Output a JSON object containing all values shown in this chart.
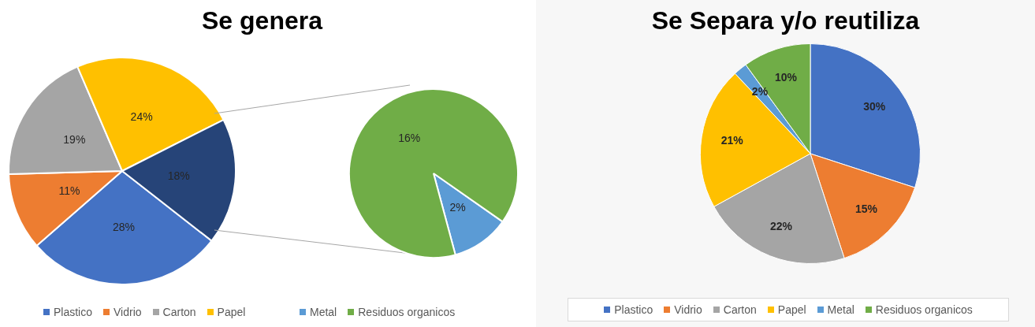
{
  "chart_data": [
    {
      "type": "pie",
      "title": "Se genera",
      "categories": [
        "Plastico",
        "Vidrio",
        "Carton",
        "Papel",
        null
      ],
      "values": [
        28,
        11,
        19,
        24,
        18
      ],
      "value_labels": [
        "28%",
        "11%",
        "19%",
        "24%",
        "18%"
      ],
      "colors": [
        "#4472c4",
        "#ed7d31",
        "#a5a5a5",
        "#ffc000",
        "#264478"
      ],
      "legend": "bottom"
    },
    {
      "type": "pie",
      "categories": [
        "Metal",
        "Residuos organicos"
      ],
      "values": [
        2,
        16
      ],
      "value_labels": [
        "2%",
        "16%"
      ],
      "colors": [
        "#5b9bd5",
        "#70ad47"
      ],
      "legend": "bottom"
    },
    {
      "type": "pie",
      "title": "Se Separa y/o reutiliza",
      "categories": [
        "Plastico",
        "Vidrio",
        "Carton",
        "Papel",
        "Metal",
        "Residuos organicos"
      ],
      "values": [
        30,
        15,
        22,
        21,
        2,
        10
      ],
      "value_labels": [
        "30%",
        "15%",
        "22%",
        "21%",
        "2%",
        "10%"
      ],
      "colors": [
        "#4472c4",
        "#ed7d31",
        "#a5a5a5",
        "#ffc000",
        "#5b9bd5",
        "#70ad47"
      ],
      "legend": "bottom"
    }
  ]
}
